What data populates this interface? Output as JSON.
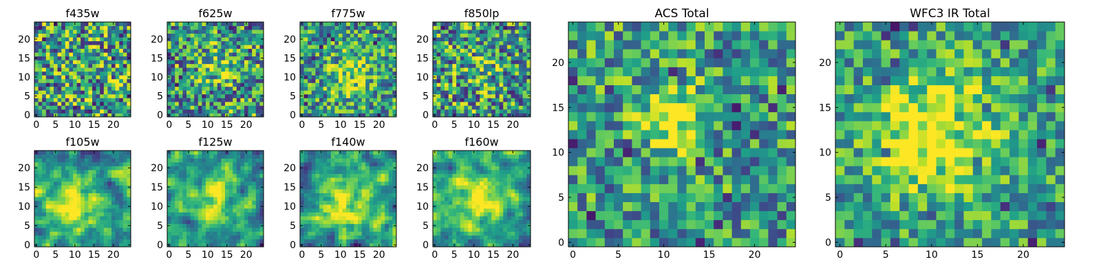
{
  "figure": {
    "colormap": "viridis",
    "frame_color": "#000000",
    "background": "#ffffff"
  },
  "chart_data": [
    {
      "type": "heatmap",
      "title": "f435w",
      "grid_size": 25,
      "xlim": [
        -0.5,
        24.5
      ],
      "ylim": [
        -0.5,
        24.5
      ],
      "xticks": [
        0,
        5,
        10,
        15,
        20
      ],
      "yticks": [
        0,
        5,
        10,
        15,
        20
      ],
      "center": [
        12,
        12
      ],
      "blob_amplitude": 0.05,
      "blob_sigma": 4,
      "noise_level": 0.95,
      "smoothing": 0,
      "seed": 11,
      "value_range": [
        0,
        1
      ],
      "colorbar": false
    },
    {
      "type": "heatmap",
      "title": "f625w",
      "grid_size": 25,
      "xlim": [
        -0.5,
        24.5
      ],
      "ylim": [
        -0.5,
        24.5
      ],
      "xticks": [
        0,
        5,
        10,
        15,
        20
      ],
      "yticks": [
        0,
        5,
        10,
        15,
        20
      ],
      "center": [
        12,
        13
      ],
      "blob_amplitude": 0.25,
      "blob_sigma": 3,
      "noise_level": 0.85,
      "smoothing": 0,
      "seed": 23,
      "value_range": [
        0,
        1
      ],
      "colorbar": false
    },
    {
      "type": "heatmap",
      "title": "f775w",
      "grid_size": 25,
      "xlim": [
        -0.5,
        24.5
      ],
      "ylim": [
        -0.5,
        24.5
      ],
      "xticks": [
        0,
        5,
        10,
        15,
        20
      ],
      "yticks": [
        0,
        5,
        10,
        15,
        20
      ],
      "center": [
        12,
        11
      ],
      "blob_amplitude": 0.4,
      "blob_sigma": 3.5,
      "noise_level": 0.75,
      "smoothing": 0,
      "seed": 37,
      "value_range": [
        0,
        1
      ],
      "colorbar": false
    },
    {
      "type": "heatmap",
      "title": "f850lp",
      "grid_size": 25,
      "xlim": [
        -0.5,
        24.5
      ],
      "ylim": [
        -0.5,
        24.5
      ],
      "xticks": [
        0,
        5,
        10,
        15,
        20
      ],
      "yticks": [
        0,
        5,
        10,
        15,
        20
      ],
      "center": [
        12,
        12
      ],
      "blob_amplitude": 0.15,
      "blob_sigma": 3.5,
      "noise_level": 0.9,
      "smoothing": 0,
      "seed": 53,
      "value_range": [
        0,
        1
      ],
      "colorbar": false
    },
    {
      "type": "heatmap",
      "title": "f105w",
      "grid_size": 25,
      "xlim": [
        -0.5,
        24.5
      ],
      "ylim": [
        -0.5,
        24.5
      ],
      "xticks": [
        0,
        5,
        10,
        15,
        20
      ],
      "yticks": [
        0,
        5,
        10,
        15,
        20
      ],
      "center": [
        10,
        10
      ],
      "blob_amplitude": 0.45,
      "blob_sigma": 4.5,
      "noise_level": 0.7,
      "smoothing": 1,
      "seed": 71,
      "value_range": [
        0,
        1
      ],
      "colorbar": false
    },
    {
      "type": "heatmap",
      "title": "f125w",
      "grid_size": 25,
      "xlim": [
        -0.5,
        24.5
      ],
      "ylim": [
        -0.5,
        24.5
      ],
      "xticks": [
        0,
        5,
        10,
        15,
        20
      ],
      "yticks": [
        0,
        5,
        10,
        15,
        20
      ],
      "center": [
        12,
        12
      ],
      "blob_amplitude": 0.45,
      "blob_sigma": 4,
      "noise_level": 0.7,
      "smoothing": 1,
      "seed": 89,
      "value_range": [
        0,
        1
      ],
      "colorbar": false
    },
    {
      "type": "heatmap",
      "title": "f140w",
      "grid_size": 25,
      "xlim": [
        -0.5,
        24.5
      ],
      "ylim": [
        -0.5,
        24.5
      ],
      "xticks": [
        0,
        5,
        10,
        15,
        20
      ],
      "yticks": [
        0,
        5,
        10,
        15,
        20
      ],
      "center": [
        11,
        10
      ],
      "blob_amplitude": 0.4,
      "blob_sigma": 4.5,
      "noise_level": 0.7,
      "smoothing": 1,
      "seed": 97,
      "value_range": [
        0,
        1
      ],
      "colorbar": false
    },
    {
      "type": "heatmap",
      "title": "f160w",
      "grid_size": 25,
      "xlim": [
        -0.5,
        24.5
      ],
      "ylim": [
        -0.5,
        24.5
      ],
      "xticks": [
        0,
        5,
        10,
        15,
        20
      ],
      "yticks": [
        0,
        5,
        10,
        15,
        20
      ],
      "center": [
        12,
        12
      ],
      "blob_amplitude": 0.5,
      "blob_sigma": 4.5,
      "noise_level": 0.65,
      "smoothing": 1,
      "seed": 113,
      "value_range": [
        0,
        1
      ],
      "colorbar": false
    },
    {
      "type": "heatmap",
      "title": "ACS Total",
      "grid_size": 25,
      "xlim": [
        -0.5,
        24.5
      ],
      "ylim": [
        -0.5,
        24.5
      ],
      "xticks": [
        0,
        5,
        10,
        15,
        20
      ],
      "yticks": [
        0,
        5,
        10,
        15,
        20
      ],
      "center": [
        11,
        14
      ],
      "blob_amplitude": 0.5,
      "blob_sigma": 2.5,
      "noise_level": 0.7,
      "smoothing": 0,
      "seed": 131,
      "value_range": [
        0,
        1
      ],
      "colorbar": false
    },
    {
      "type": "heatmap",
      "title": "WFC3 IR Total",
      "grid_size": 25,
      "xlim": [
        -0.5,
        24.5
      ],
      "ylim": [
        -0.5,
        24.5
      ],
      "xticks": [
        0,
        5,
        10,
        15,
        20
      ],
      "yticks": [
        0,
        5,
        10,
        15,
        20
      ],
      "center": [
        11,
        12
      ],
      "blob_amplitude": 0.55,
      "blob_sigma": 4.5,
      "noise_level": 0.6,
      "smoothing": 0,
      "seed": 149,
      "value_range": [
        0,
        1
      ],
      "colorbar": false
    }
  ]
}
